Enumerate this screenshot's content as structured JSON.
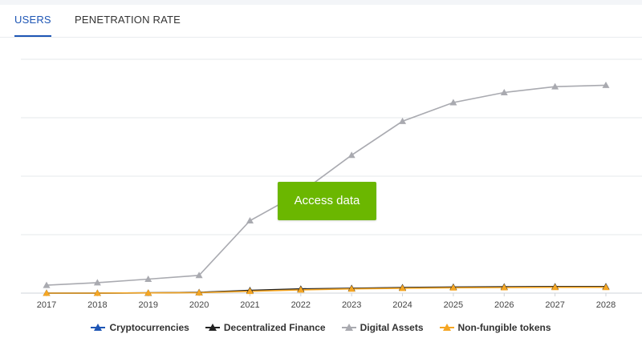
{
  "tabs": [
    {
      "label": "USERS",
      "active": true
    },
    {
      "label": "PENETRATION RATE",
      "active": false
    }
  ],
  "cta": {
    "label": "Access data"
  },
  "chart_data": {
    "type": "line",
    "x": [
      "2017",
      "2018",
      "2019",
      "2020",
      "2021",
      "2022",
      "2023",
      "2024",
      "2025",
      "2026",
      "2027",
      "2028"
    ],
    "ylim": [
      0,
      100
    ],
    "grid": true,
    "legend_position": "bottom",
    "series": [
      {
        "name": "Cryptocurrencies",
        "color": "#1e56b5",
        "values": [
          0,
          0,
          0.1,
          0.3,
          1.0,
          1.6,
          2.0,
          2.3,
          2.5,
          2.6,
          2.7,
          2.8
        ]
      },
      {
        "name": "Decentralized Finance",
        "color": "#222222",
        "values": [
          0,
          0,
          0.1,
          0.3,
          1.2,
          1.8,
          2.1,
          2.4,
          2.6,
          2.7,
          2.8,
          2.8
        ]
      },
      {
        "name": "Digital Assets",
        "color": "#a9aab0",
        "values": [
          3.4,
          4.5,
          6.0,
          7.6,
          31.0,
          43.0,
          59.0,
          73.5,
          81.5,
          85.8,
          88.3,
          88.9
        ]
      },
      {
        "name": "Non-fungible tokens",
        "color": "#f5a623",
        "values": [
          0,
          0,
          0.1,
          0.2,
          0.8,
          1.4,
          1.8,
          2.1,
          2.3,
          2.4,
          2.5,
          2.5
        ]
      }
    ]
  }
}
